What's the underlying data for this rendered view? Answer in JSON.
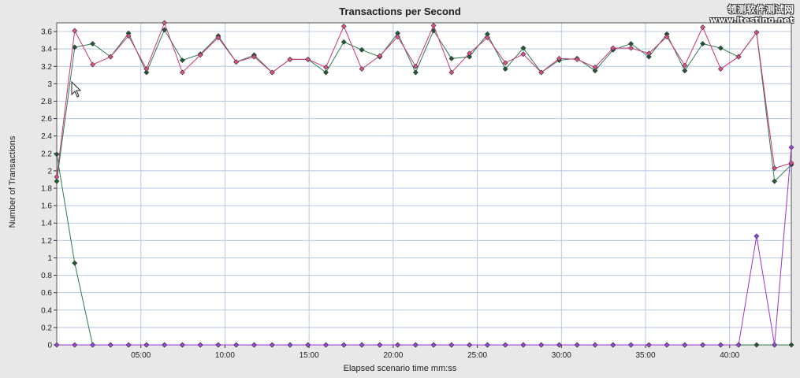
{
  "watermark": {
    "line1": "领测软件测试网",
    "line2": "www.ltesting.net"
  },
  "colors": {
    "plot_bg": "#ffffff",
    "grid": "#b8c8e4",
    "green": "#2e7d4a",
    "pink": "#cc3377",
    "purple": "#9933cc"
  },
  "chart_data": {
    "type": "line",
    "title": "Transactions per Second",
    "xlabel": "Elapsed scenario time mm:ss",
    "ylabel": "Number of Transactions",
    "xlim": [
      0,
      2620
    ],
    "ylim": [
      0,
      3.7
    ],
    "x_ticks": [
      300,
      600,
      900,
      1200,
      1500,
      1800,
      2100,
      2400
    ],
    "x_tick_labels": [
      "05:00",
      "10:00",
      "15:00",
      "20:00",
      "25:00",
      "30:00",
      "35:00",
      "40:00"
    ],
    "y_ticks": [
      0,
      0.2,
      0.4,
      0.6,
      0.8,
      1,
      1.2,
      1.4,
      1.6,
      1.8,
      2,
      2.2,
      2.4,
      2.6,
      2.8,
      3,
      3.2,
      3.4,
      3.6
    ],
    "y_tick_labels": [
      "0",
      "0.2",
      "0.4",
      "0.6",
      "0.8",
      "1",
      "1.2",
      "1.4",
      "1.6",
      "1.8",
      "2",
      "2.2",
      "2.4",
      "2.6",
      "2.8",
      "3",
      "3.2",
      "3.4",
      "3.6"
    ],
    "grid": true,
    "legend": "none",
    "series": [
      {
        "color": "#2e7d4a",
        "marker_fill": "#1f5a33",
        "x": [
          0,
          64,
          128,
          192,
          256,
          320,
          384,
          448,
          512,
          576,
          640,
          704,
          768,
          832,
          896,
          960,
          1024,
          1088,
          1152,
          1216,
          1280,
          1344,
          1408,
          1472,
          1536,
          1600,
          1664,
          1728,
          1792,
          1856,
          1920,
          1984,
          2048,
          2112,
          2176,
          2240,
          2304,
          2368,
          2432,
          2496,
          2560,
          2620
        ],
        "y": [
          1.88,
          3.42,
          3.46,
          3.31,
          3.58,
          3.13,
          3.62,
          3.27,
          3.34,
          3.55,
          3.25,
          3.33,
          3.13,
          3.28,
          3.28,
          3.13,
          3.48,
          3.39,
          3.31,
          3.58,
          3.13,
          3.61,
          3.29,
          3.31,
          3.57,
          3.17,
          3.41,
          3.13,
          3.27,
          3.29,
          3.15,
          3.39,
          3.46,
          3.31,
          3.57,
          3.15,
          3.46,
          3.41,
          3.31,
          3.59,
          1.88,
          2.07
        ]
      },
      {
        "color": "#cc3377",
        "marker_fill": "#e0508c",
        "x": [
          0,
          64,
          128,
          192,
          256,
          320,
          384,
          448,
          512,
          576,
          640,
          704,
          768,
          832,
          896,
          960,
          1024,
          1088,
          1152,
          1216,
          1280,
          1344,
          1408,
          1472,
          1536,
          1600,
          1664,
          1728,
          1792,
          1856,
          1920,
          1984,
          2048,
          2112,
          2176,
          2240,
          2304,
          2368,
          2432,
          2496,
          2560,
          2620
        ],
        "y": [
          1.93,
          3.61,
          3.22,
          3.31,
          3.55,
          3.17,
          3.7,
          3.13,
          3.33,
          3.53,
          3.25,
          3.31,
          3.13,
          3.28,
          3.28,
          3.19,
          3.66,
          3.17,
          3.32,
          3.54,
          3.2,
          3.67,
          3.13,
          3.35,
          3.53,
          3.24,
          3.34,
          3.13,
          3.29,
          3.28,
          3.19,
          3.41,
          3.41,
          3.35,
          3.54,
          3.21,
          3.65,
          3.17,
          3.31,
          3.59,
          2.03,
          2.09
        ]
      },
      {
        "color": "#2e7d4a",
        "marker_fill": "#1f5a33",
        "x": [
          0,
          64,
          128,
          192,
          256,
          320,
          384,
          448,
          512,
          576,
          640,
          704,
          768,
          832,
          896,
          960,
          1024,
          1088,
          1152,
          1216,
          1280,
          1344,
          1408,
          1472,
          1536,
          1600,
          1664,
          1728,
          1792,
          1856,
          1920,
          1984,
          2048,
          2112,
          2176,
          2240,
          2304,
          2368,
          2432,
          2496,
          2560,
          2620
        ],
        "y": [
          2.19,
          0.94,
          0,
          0,
          0,
          0,
          0,
          0,
          0,
          0,
          0,
          0,
          0,
          0,
          0,
          0,
          0,
          0,
          0,
          0,
          0,
          0,
          0,
          0,
          0,
          0,
          0,
          0,
          0,
          0,
          0,
          0,
          0,
          0,
          0,
          0,
          0,
          0,
          0,
          0,
          0,
          0
        ]
      },
      {
        "color": "#9933cc",
        "marker_fill": "#9944dd",
        "x": [
          0,
          64,
          128,
          192,
          256,
          320,
          384,
          448,
          512,
          576,
          640,
          704,
          768,
          832,
          896,
          960,
          1024,
          1088,
          1152,
          1216,
          1280,
          1344,
          1408,
          1472,
          1536,
          1600,
          1664,
          1728,
          1792,
          1856,
          1920,
          1984,
          2048,
          2112,
          2176,
          2240,
          2304,
          2368,
          2432,
          2496,
          2560,
          2620
        ],
        "y": [
          0,
          0,
          0,
          0,
          0,
          0,
          0,
          0,
          0,
          0,
          0,
          0,
          0,
          0,
          0,
          0,
          0,
          0,
          0,
          0,
          0,
          0,
          0,
          0,
          0,
          0,
          0,
          0,
          0,
          0,
          0,
          0,
          0,
          0,
          0,
          0,
          0,
          0,
          0,
          1.25,
          0,
          2.27
        ]
      }
    ]
  }
}
